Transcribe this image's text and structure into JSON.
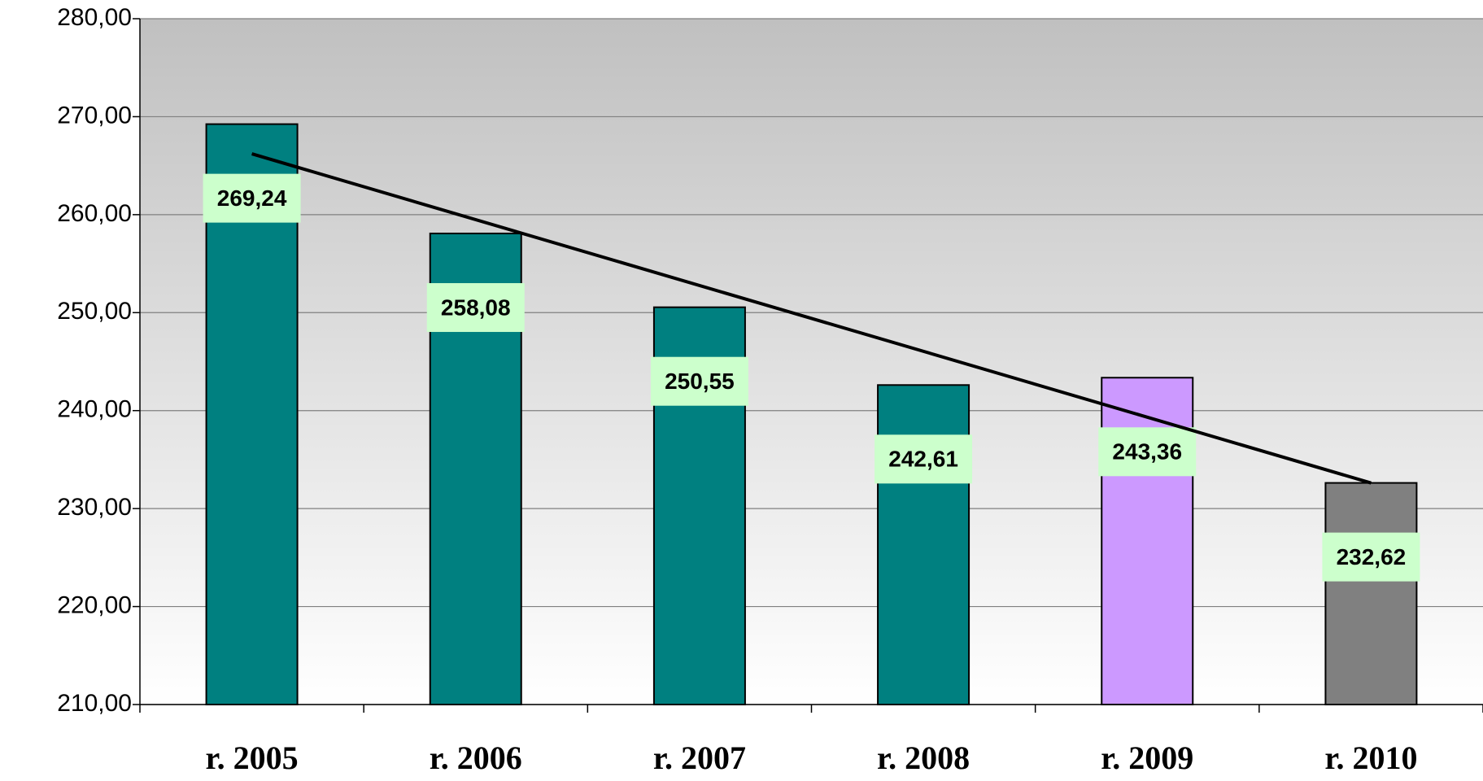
{
  "chart_data": {
    "type": "bar",
    "categories": [
      "r. 2005",
      "r. 2006",
      "r. 2007",
      "r. 2008",
      "r. 2009",
      "r. 2010"
    ],
    "values": [
      269.24,
      258.08,
      250.55,
      242.61,
      243.36,
      232.62
    ],
    "value_labels": [
      "269,24",
      "258,08",
      "250,55",
      "242,61",
      "243,36",
      "232,62"
    ],
    "colors": [
      "#008080",
      "#008080",
      "#008080",
      "#008080",
      "#cc99ff",
      "#808080"
    ],
    "ylim": [
      210,
      280
    ],
    "yticks": [
      {
        "value": 210,
        "label": "210,00"
      },
      {
        "value": 220,
        "label": "220,00"
      },
      {
        "value": 230,
        "label": "230,00"
      },
      {
        "value": 240,
        "label": "240,00"
      },
      {
        "value": 250,
        "label": "250,00"
      },
      {
        "value": 260,
        "label": "260,00"
      },
      {
        "value": 270,
        "label": "270,00"
      },
      {
        "value": 280,
        "label": "280,00"
      }
    ],
    "grid": true,
    "trendline": "linear"
  }
}
